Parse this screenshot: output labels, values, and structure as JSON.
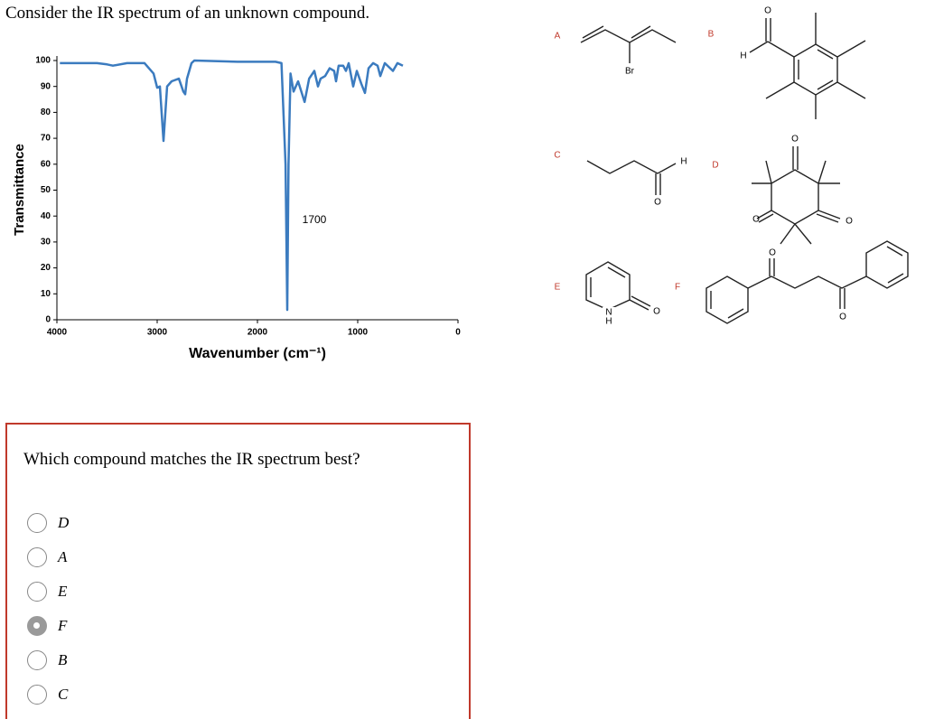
{
  "header": {
    "title": "Consider the IR spectrum of an unknown compound."
  },
  "chart_data": {
    "type": "line",
    "x": [
      3970,
      3600,
      3500,
      3441,
      3300,
      3126,
      3036,
      3000,
      2973,
      2937,
      2901,
      2856,
      2784,
      2739,
      2721,
      2703,
      2658,
      2630,
      2200,
      1820,
      1760,
      1720,
      1703,
      1690,
      1670,
      1640,
      1595,
      1530,
      1485,
      1432,
      1396,
      1370,
      1325,
      1280,
      1235,
      1216,
      1190,
      1145,
      1117,
      1090,
      1045,
      1009,
      964,
      928,
      892,
      847,
      802,
      775,
      730,
      676,
      649,
      604,
      550
    ],
    "values": [
      99,
      99,
      98.5,
      98,
      99,
      99,
      95,
      89.5,
      90,
      69,
      90,
      92,
      93,
      88,
      87,
      93,
      99,
      100,
      99.5,
      99.5,
      99,
      60,
      3.8,
      60,
      95,
      88,
      92,
      84,
      93,
      96,
      90,
      93,
      94,
      97,
      96,
      92,
      98,
      98,
      96,
      99,
      90,
      96,
      91,
      87.5,
      97,
      99,
      98,
      94,
      99,
      97,
      96,
      99,
      98
    ],
    "color": "#3b7bbf",
    "xlim": [
      4000,
      0
    ],
    "ylim": [
      0,
      100
    ],
    "xticks": [
      4000,
      3000,
      2000,
      1000,
      0
    ],
    "yticks": [
      0,
      10,
      20,
      30,
      40,
      50,
      60,
      70,
      80,
      90,
      100
    ],
    "xlabel": "Wavenumber (cm⁻¹)",
    "ylabel": "Transmittance",
    "annotation": "1700"
  },
  "structures": [
    {
      "label": "A",
      "atoms": [
        "Br"
      ]
    },
    {
      "label": "B",
      "atoms": [
        "O",
        "H"
      ]
    },
    {
      "label": "C",
      "atoms": [
        "H",
        "O"
      ]
    },
    {
      "label": "D",
      "atoms": [
        "O",
        "O",
        "O"
      ]
    },
    {
      "label": "E",
      "atoms": [
        "N",
        "H",
        "O"
      ]
    },
    {
      "label": "F",
      "atoms": [
        "O",
        "O"
      ]
    }
  ],
  "question": {
    "prompt": "Which compound matches the IR spectrum best?",
    "options": [
      "D",
      "A",
      "E",
      "F",
      "B",
      "C"
    ],
    "selected": 3
  }
}
